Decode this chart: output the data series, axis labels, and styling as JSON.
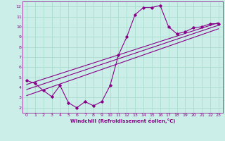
{
  "xlabel": "Windchill (Refroidissement éolien,°C)",
  "bg_color": "#cceee8",
  "grid_color": "#aaddcc",
  "line_color": "#880088",
  "xlim": [
    -0.5,
    23.5
  ],
  "ylim": [
    1.5,
    12.5
  ],
  "xticks": [
    0,
    1,
    2,
    3,
    4,
    5,
    6,
    7,
    8,
    9,
    10,
    11,
    12,
    13,
    14,
    15,
    16,
    17,
    18,
    19,
    20,
    21,
    22,
    23
  ],
  "yticks": [
    2,
    3,
    4,
    5,
    6,
    7,
    8,
    9,
    10,
    11,
    12
  ],
  "curve1_x": [
    0,
    1,
    2,
    3,
    4,
    5,
    6,
    7,
    8,
    9,
    10,
    11,
    12,
    13,
    14,
    15,
    16,
    17,
    18,
    19,
    20,
    21,
    22,
    23
  ],
  "curve1_y": [
    4.7,
    4.4,
    3.7,
    3.1,
    4.2,
    2.5,
    2.0,
    2.6,
    2.2,
    2.6,
    4.2,
    7.2,
    9.0,
    11.2,
    11.9,
    11.9,
    12.1,
    10.0,
    9.3,
    9.5,
    9.9,
    10.0,
    10.3,
    10.3
  ],
  "line1_x": [
    0,
    23
  ],
  "line1_y": [
    4.3,
    10.4
  ],
  "line2_x": [
    0,
    23
  ],
  "line2_y": [
    3.8,
    10.15
  ],
  "line3_x": [
    0,
    23
  ],
  "line3_y": [
    3.2,
    9.8
  ]
}
